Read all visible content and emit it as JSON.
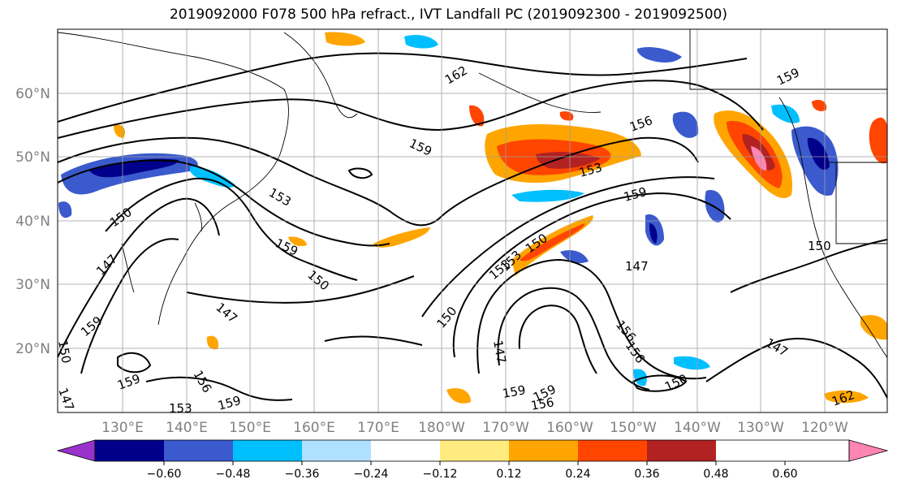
{
  "title": "2019092000 F078 500 hPa refract., IVT Landfall PC (2019092300 - 2019092500)",
  "lat_labels": [
    "60°N",
    "50°N",
    "40°N",
    "30°N",
    "20°N"
  ],
  "lon_labels": [
    "130°E",
    "140°E",
    "150°E",
    "160°E",
    "170°E",
    "180°W",
    "170°W",
    "160°W",
    "150°W",
    "140°W",
    "130°W",
    "120°W"
  ],
  "colorbar": {
    "ticks": [
      "−0.60",
      "−0.48",
      "−0.36",
      "−0.24",
      "−0.12",
      "0.12",
      "0.24",
      "0.36",
      "0.48",
      "0.60"
    ],
    "colors": [
      "#9932cc",
      "#00008b",
      "#3a5acd",
      "#00bfff",
      "#b0e0ff",
      "#ffffff",
      "#ffeb80",
      "#ffa500",
      "#ff4500",
      "#b22222",
      "#ff85b3"
    ]
  },
  "contour_labels": [
    "162",
    "159",
    "156",
    "153",
    "150",
    "147",
    "159",
    "153",
    "150",
    "159",
    "150",
    "147",
    "159",
    "156",
    "159",
    "153",
    "150",
    "147",
    "156",
    "159",
    "150",
    "147",
    "162",
    "159",
    "150",
    "156",
    "147",
    "153",
    "159",
    "156",
    "153",
    "150",
    "147",
    "159"
  ]
}
